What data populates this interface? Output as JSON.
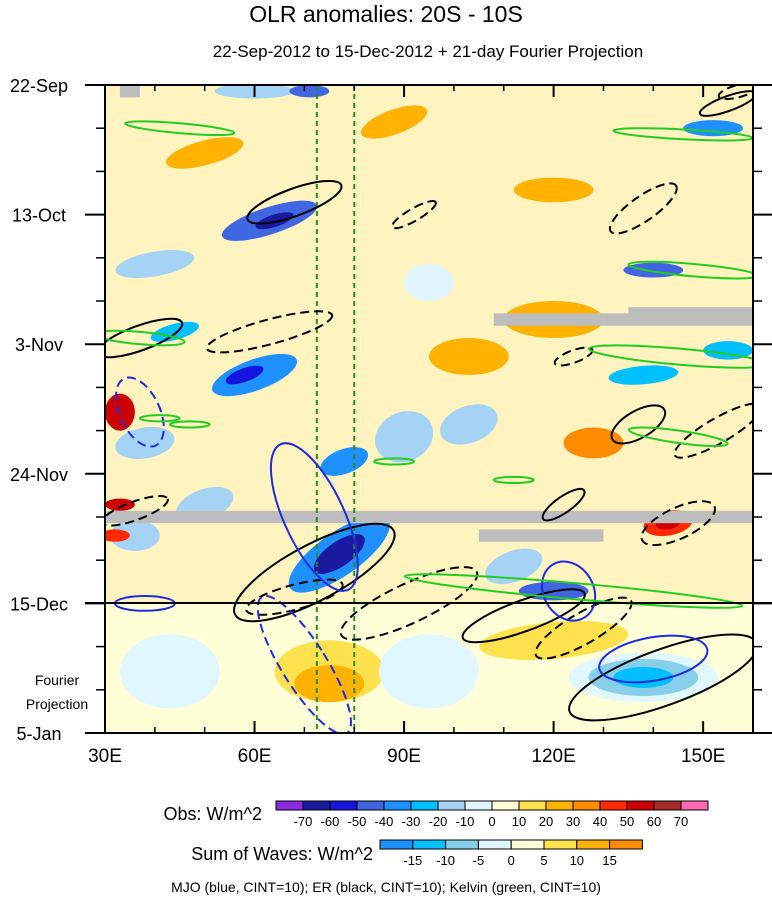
{
  "chart_data": {
    "type": "heatmap",
    "title": "OLR anomalies: 20S - 10S",
    "subtitle": "22-Sep-2012 to 15-Dec-2012 + 21-day Fourier Projection",
    "x_ticks": [
      {
        "value": 30,
        "label": "30E"
      },
      {
        "value": 60,
        "label": "60E"
      },
      {
        "value": 90,
        "label": "90E"
      },
      {
        "value": 120,
        "label": "120E"
      },
      {
        "value": 150,
        "label": "150E"
      }
    ],
    "xlim": [
      30,
      160
    ],
    "y_ticks": [
      {
        "value": 0,
        "label": "22-Sep"
      },
      {
        "value": 21,
        "label": "13-Oct"
      },
      {
        "value": 42,
        "label": "3-Nov"
      },
      {
        "value": 63,
        "label": "24-Nov"
      },
      {
        "value": 84,
        "label": "15-Dec"
      },
      {
        "value": 105,
        "label": "5-Jan"
      }
    ],
    "ylim_days": [
      0,
      105
    ],
    "projection_start_day": 84,
    "projection_label": [
      "Fourier",
      "Projection"
    ],
    "reference_longitudes": [
      72.5,
      80
    ],
    "obs_legend": {
      "label": "Obs: W/m^2",
      "levels": [
        "-70",
        "-60",
        "-50",
        "-40",
        "-30",
        "-20",
        "-10",
        "0",
        "10",
        "20",
        "30",
        "40",
        "50",
        "60",
        "70"
      ],
      "colors": [
        "#8a2be2",
        "#1a1aa0",
        "#1515e0",
        "#4166e1",
        "#1e90ff",
        "#00bfff",
        "#a5d3f6",
        "#e0f5ff",
        "#ffffd8",
        "#ffe14d",
        "#ffb300",
        "#ff8c00",
        "#ff2a00",
        "#cc0000",
        "#a52a2a",
        "#ff69b4"
      ]
    },
    "waves_legend": {
      "label": "Sum of Waves: W/m^2",
      "levels": [
        "-15",
        "-10",
        "-5",
        "0",
        "5",
        "10",
        "15"
      ],
      "colors": [
        "#1e90ff",
        "#00bfff",
        "#87ceeb",
        "#e0f7ff",
        "#ffffd8",
        "#ffe14d",
        "#ffb300",
        "#ff8c00"
      ]
    },
    "footer": "MJO (blue, CINT=10); ER (black, CINT=10); Kelvin (green, CINT=10)",
    "features": [
      {
        "kind": "fill",
        "lon": 63,
        "day": 22,
        "rx": 10,
        "ry": 2.2,
        "rot": -18,
        "value": -50
      },
      {
        "kind": "fill",
        "lon": 64,
        "day": 22,
        "rx": 4,
        "ry": 1.0,
        "rot": -18,
        "value": -70
      },
      {
        "kind": "fill",
        "lon": 60,
        "day": 47,
        "rx": 9,
        "ry": 2.5,
        "rot": -20,
        "value": -40
      },
      {
        "kind": "fill",
        "lon": 58,
        "day": 47,
        "rx": 4,
        "ry": 1.1,
        "rot": -20,
        "value": -60
      },
      {
        "kind": "fill",
        "lon": 77,
        "day": 76,
        "rx": 12,
        "ry": 3.5,
        "rot": -35,
        "value": -40
      },
      {
        "kind": "fill",
        "lon": 77,
        "day": 76,
        "rx": 6,
        "ry": 2.0,
        "rot": -35,
        "value": -70
      },
      {
        "kind": "fill",
        "lon": 78,
        "day": 61,
        "rx": 5,
        "ry": 2.0,
        "rot": -20,
        "value": -40
      },
      {
        "kind": "fill",
        "lon": 40,
        "day": 29,
        "rx": 8,
        "ry": 2.0,
        "rot": -10,
        "value": -20
      },
      {
        "kind": "fill",
        "lon": 60,
        "day": 1,
        "rx": 8,
        "ry": 1.2,
        "rot": 0,
        "value": -20
      },
      {
        "kind": "fill",
        "lon": 71,
        "day": 1,
        "rx": 4,
        "ry": 1.0,
        "rot": 0,
        "value": -50
      },
      {
        "kind": "fill",
        "lon": 44,
        "day": 40,
        "rx": 5,
        "ry": 1.3,
        "rot": -15,
        "value": -30
      },
      {
        "kind": "fill",
        "lon": 38,
        "day": 58,
        "rx": 6,
        "ry": 2.5,
        "rot": -10,
        "value": -20
      },
      {
        "kind": "fill",
        "lon": 90,
        "day": 57,
        "rx": 6,
        "ry": 4,
        "rot": -25,
        "value": -20
      },
      {
        "kind": "fill",
        "lon": 103,
        "day": 55,
        "rx": 6,
        "ry": 3,
        "rot": -20,
        "value": -20
      },
      {
        "kind": "fill",
        "lon": 112,
        "day": 78,
        "rx": 6,
        "ry": 2.5,
        "rot": -20,
        "value": -20
      },
      {
        "kind": "fill",
        "lon": 120,
        "day": 82,
        "rx": 7,
        "ry": 1.5,
        "rot": 0,
        "value": -50
      },
      {
        "kind": "fill",
        "lon": 138,
        "day": 47,
        "rx": 7,
        "ry": 1.5,
        "rot": -5,
        "value": -30
      },
      {
        "kind": "fill",
        "lon": 140,
        "day": 30,
        "rx": 6,
        "ry": 1.2,
        "rot": 0,
        "value": -50
      },
      {
        "kind": "fill",
        "lon": 152,
        "day": 7,
        "rx": 6,
        "ry": 1.3,
        "rot": 0,
        "value": -40
      },
      {
        "kind": "fill",
        "lon": 155,
        "day": 43,
        "rx": 5,
        "ry": 1.5,
        "rot": 0,
        "value": -30
      },
      {
        "kind": "fill",
        "lon": 36,
        "day": 73,
        "rx": 5,
        "ry": 2.5,
        "rot": 0,
        "value": -20
      },
      {
        "kind": "fill",
        "lon": 95,
        "day": 32,
        "rx": 5,
        "ry": 3,
        "rot": 0,
        "value": -10
      },
      {
        "kind": "fill",
        "lon": 50,
        "day": 68,
        "rx": 6,
        "ry": 2.5,
        "rot": -20,
        "value": -20
      },
      {
        "kind": "fill",
        "lon": 143,
        "day": 71,
        "rx": 5,
        "ry": 2.0,
        "rot": -10,
        "value": 40
      },
      {
        "kind": "fill",
        "lon": 143,
        "day": 71,
        "rx": 2.5,
        "ry": 1.0,
        "rot": -10,
        "value": 50
      },
      {
        "kind": "fill",
        "lon": 33,
        "day": 53,
        "rx": 3,
        "ry": 3,
        "rot": 0,
        "value": 50
      },
      {
        "kind": "fill",
        "lon": 33,
        "day": 68,
        "rx": 3,
        "ry": 1,
        "rot": 0,
        "value": 50
      },
      {
        "kind": "fill",
        "lon": 32,
        "day": 73,
        "rx": 3,
        "ry": 1,
        "rot": 0,
        "value": 40
      },
      {
        "kind": "fill",
        "lon": 88,
        "day": 6,
        "rx": 7,
        "ry": 2,
        "rot": -20,
        "value": 20
      },
      {
        "kind": "fill",
        "lon": 50,
        "day": 11,
        "rx": 8,
        "ry": 2,
        "rot": -15,
        "value": 20
      },
      {
        "kind": "fill",
        "lon": 120,
        "day": 38,
        "rx": 10,
        "ry": 3,
        "rot": 0,
        "value": 20
      },
      {
        "kind": "fill",
        "lon": 128,
        "day": 58,
        "rx": 6,
        "ry": 2.5,
        "rot": 0,
        "value": 30
      },
      {
        "kind": "fill",
        "lon": 120,
        "day": 17,
        "rx": 8,
        "ry": 2,
        "rot": 0,
        "value": 20
      },
      {
        "kind": "fill",
        "lon": 103,
        "day": 44,
        "rx": 8,
        "ry": 3,
        "rot": 0,
        "value": 20
      },
      {
        "kind": "fill",
        "lon": 75,
        "day": 95,
        "rx": 11,
        "ry": 5,
        "rot": 0,
        "value": 5
      },
      {
        "kind": "fill",
        "lon": 75,
        "day": 97,
        "rx": 7,
        "ry": 3,
        "rot": 0,
        "value": 10
      },
      {
        "kind": "fill",
        "lon": 95,
        "day": 95,
        "rx": 10,
        "ry": 6,
        "rot": 0,
        "value": -5
      },
      {
        "kind": "fill",
        "lon": 43,
        "day": 95,
        "rx": 10,
        "ry": 6,
        "rot": 0,
        "value": -5
      },
      {
        "kind": "fill",
        "lon": 138,
        "day": 96,
        "rx": 15,
        "ry": 4,
        "rot": 0,
        "value": -5
      },
      {
        "kind": "fill",
        "lon": 138,
        "day": 96,
        "rx": 11,
        "ry": 3,
        "rot": 0,
        "value": -10
      },
      {
        "kind": "fill",
        "lon": 138,
        "day": 96,
        "rx": 6,
        "ry": 1.7,
        "rot": 0,
        "value": -15
      },
      {
        "kind": "fill",
        "lon": 120,
        "day": 90,
        "rx": 15,
        "ry": 3,
        "rot": -5,
        "value": 5
      }
    ],
    "contours": [
      {
        "wave": "ER",
        "sign": "positive",
        "lon": 68,
        "day": 19,
        "rx": 10,
        "ry": 2.2,
        "rot": -20
      },
      {
        "wave": "ER",
        "sign": "negative",
        "lon": 63,
        "day": 40,
        "rx": 13,
        "ry": 2.0,
        "rot": -15
      },
      {
        "wave": "ER",
        "sign": "negative",
        "lon": 92,
        "day": 21,
        "rx": 5,
        "ry": 1.0,
        "rot": -30
      },
      {
        "wave": "ER",
        "sign": "negative",
        "lon": 138,
        "day": 20,
        "rx": 8,
        "ry": 2.0,
        "rot": -35
      },
      {
        "wave": "ER",
        "sign": "positive",
        "lon": 37,
        "day": 41,
        "rx": 9,
        "ry": 2.0,
        "rot": -20
      },
      {
        "wave": "ER",
        "sign": "negative",
        "lon": 124,
        "day": 44,
        "rx": 4,
        "ry": 1.0,
        "rot": -20
      },
      {
        "wave": "ER",
        "sign": "positive",
        "lon": 137,
        "day": 55,
        "rx": 6,
        "ry": 2.2,
        "rot": -30
      },
      {
        "wave": "ER",
        "sign": "negative",
        "lon": 153,
        "day": 56,
        "rx": 10,
        "ry": 2.0,
        "rot": -30
      },
      {
        "wave": "ER",
        "sign": "positive",
        "lon": 122,
        "day": 68,
        "rx": 5,
        "ry": 1.3,
        "rot": -35
      },
      {
        "wave": "ER",
        "sign": "negative",
        "lon": 145,
        "day": 71,
        "rx": 8,
        "ry": 2.5,
        "rot": -25
      },
      {
        "wave": "ER",
        "sign": "negative",
        "lon": 36,
        "day": 69,
        "rx": 7,
        "ry": 1.5,
        "rot": -20
      },
      {
        "wave": "ER",
        "sign": "positive",
        "lon": 72,
        "day": 79,
        "rx": 18,
        "ry": 4.5,
        "rot": -28
      },
      {
        "wave": "ER",
        "sign": "negative",
        "lon": 91,
        "day": 84,
        "rx": 15,
        "ry": 3.2,
        "rot": -25
      },
      {
        "wave": "ER",
        "sign": "positive",
        "lon": 114,
        "day": 86,
        "rx": 13,
        "ry": 2.5,
        "rot": -20
      },
      {
        "wave": "ER",
        "sign": "negative",
        "lon": 126,
        "day": 88,
        "rx": 11,
        "ry": 2.5,
        "rot": -30
      },
      {
        "wave": "ER",
        "sign": "positive",
        "lon": 142,
        "day": 96,
        "rx": 20,
        "ry": 4.5,
        "rot": -20
      },
      {
        "wave": "ER",
        "sign": "negative",
        "lon": 68,
        "day": 83,
        "rx": 10,
        "ry": 2.0,
        "rot": -15
      },
      {
        "wave": "ER",
        "sign": "positive",
        "lon": 155,
        "day": 3,
        "rx": 6,
        "ry": 1.2,
        "rot": -20
      },
      {
        "wave": "ER",
        "sign": "negative",
        "lon": 157,
        "day": 1,
        "rx": 4,
        "ry": 1.0,
        "rot": -15
      },
      {
        "wave": "MJO",
        "sign": "positive",
        "lon": 72,
        "day": 70,
        "rx": 6,
        "ry": 13,
        "rot": -25
      },
      {
        "wave": "MJO",
        "sign": "negative",
        "lon": 70,
        "day": 94,
        "rx": 4.5,
        "ry": 13,
        "rot": -32
      },
      {
        "wave": "MJO",
        "sign": "negative",
        "lon": 37,
        "day": 53,
        "rx": 4,
        "ry": 6,
        "rot": -25
      },
      {
        "wave": "MJO",
        "sign": "positive",
        "lon": 123,
        "day": 82,
        "rx": 5,
        "ry": 5,
        "rot": -30
      },
      {
        "wave": "MJO",
        "sign": "positive",
        "lon": 140,
        "day": 93,
        "rx": 11,
        "ry": 3.5,
        "rot": -10
      },
      {
        "wave": "MJO",
        "sign": "positive",
        "lon": 38,
        "day": 84,
        "rx": 6,
        "ry": 1.2,
        "rot": 0
      },
      {
        "wave": "Kelvin",
        "sign": "positive",
        "lon": 45,
        "day": 7,
        "rx": 11,
        "ry": 0.8,
        "rot": 5
      },
      {
        "wave": "Kelvin",
        "sign": "positive",
        "lon": 146,
        "day": 8,
        "rx": 14,
        "ry": 0.8,
        "rot": 3
      },
      {
        "wave": "Kelvin",
        "sign": "positive",
        "lon": 148,
        "day": 30,
        "rx": 13,
        "ry": 1.0,
        "rot": 5
      },
      {
        "wave": "Kelvin",
        "sign": "positive",
        "lon": 37,
        "day": 41,
        "rx": 9,
        "ry": 1.0,
        "rot": 5
      },
      {
        "wave": "Kelvin",
        "sign": "positive",
        "lon": 145,
        "day": 44,
        "rx": 18,
        "ry": 1.3,
        "rot": 5
      },
      {
        "wave": "Kelvin",
        "sign": "positive",
        "lon": 145,
        "day": 57,
        "rx": 10,
        "ry": 1.0,
        "rot": 8
      },
      {
        "wave": "Kelvin",
        "sign": "positive",
        "lon": 124,
        "day": 82,
        "rx": 34,
        "ry": 1.3,
        "rot": 5
      },
      {
        "wave": "Kelvin",
        "sign": "positive",
        "lon": 41,
        "day": 54,
        "rx": 4,
        "ry": 0.5,
        "rot": 0
      },
      {
        "wave": "Kelvin",
        "sign": "positive",
        "lon": 47,
        "day": 55,
        "rx": 4,
        "ry": 0.5,
        "rot": 0
      },
      {
        "wave": "Kelvin",
        "sign": "positive",
        "lon": 112,
        "day": 64,
        "rx": 4,
        "ry": 0.5,
        "rot": 0
      },
      {
        "wave": "Kelvin",
        "sign": "positive",
        "lon": 88,
        "day": 61,
        "rx": 4,
        "ry": 0.5,
        "rot": 0
      }
    ],
    "missing_data": [
      {
        "lon_start": 33,
        "lon_end": 37,
        "day_start": 0,
        "day_end": 2
      },
      {
        "lon_start": 108,
        "lon_end": 160,
        "day_start": 37,
        "day_end": 39
      },
      {
        "lon_start": 135,
        "lon_end": 160,
        "day_start": 36,
        "day_end": 38
      },
      {
        "lon_start": 30,
        "lon_end": 160,
        "day_start": 69,
        "day_end": 71
      },
      {
        "lon_start": 105,
        "lon_end": 130,
        "day_start": 72,
        "day_end": 74
      }
    ]
  }
}
